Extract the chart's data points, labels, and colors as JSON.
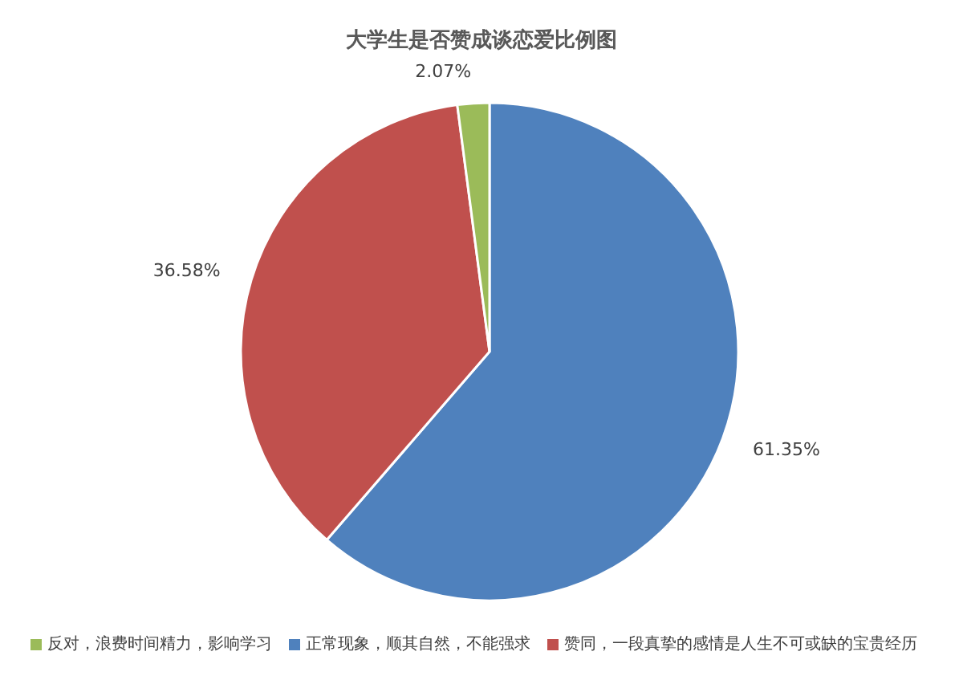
{
  "chart_data": {
    "type": "pie",
    "title": "大学生是否赞成谈恋爱比例图",
    "categories": [
      "正常现象，顺其自然，不能强求",
      "赞同，一段真挚的感情是人生不可或缺的宝贵经历",
      "反对，浪费时间精力，影响学习"
    ],
    "values": [
      61.35,
      36.58,
      2.07
    ],
    "colors": [
      "#4f81bd",
      "#c0504d",
      "#9bbb59"
    ],
    "value_labels": [
      "61.35%",
      "36.58%",
      "2.07%"
    ],
    "legend": "bottom"
  }
}
